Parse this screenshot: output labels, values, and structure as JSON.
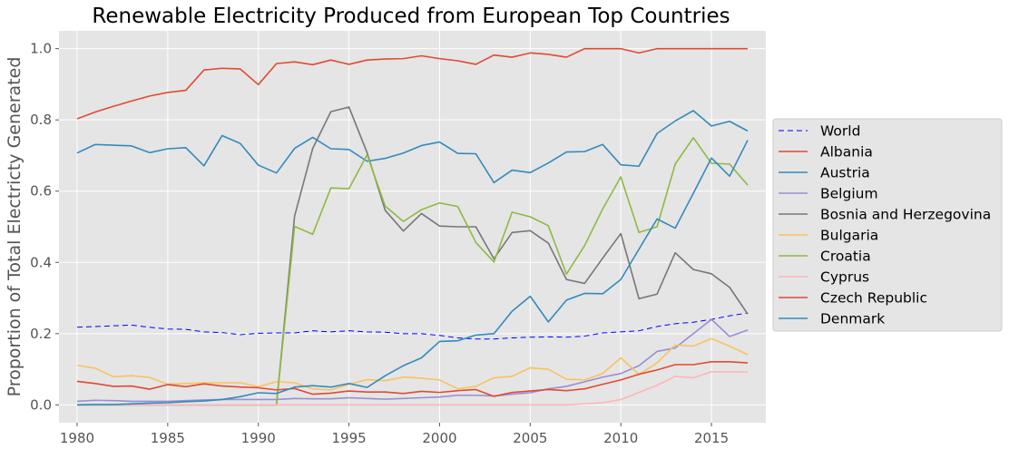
{
  "chart_data": {
    "type": "line",
    "title": "Renewable Electricity Produced from European Top Countries",
    "xlabel": "",
    "ylabel": "Proportion of Total Electricty Generated",
    "xlim": [
      1979,
      2018
    ],
    "ylim": [
      -0.05,
      1.05
    ],
    "xticks": [
      1980,
      1985,
      1990,
      1995,
      2000,
      2005,
      2010,
      2015
    ],
    "yticks": [
      0.0,
      0.2,
      0.4,
      0.6,
      0.8,
      1.0
    ],
    "ytick_labels": [
      "0.0",
      "0.2",
      "0.4",
      "0.6",
      "0.8",
      "1.0"
    ],
    "grid": true,
    "legend_position": "center-right-outside",
    "x": [
      1980,
      1981,
      1982,
      1983,
      1984,
      1985,
      1986,
      1987,
      1988,
      1989,
      1990,
      1991,
      1992,
      1993,
      1994,
      1995,
      1996,
      1997,
      1998,
      1999,
      2000,
      2001,
      2002,
      2003,
      2004,
      2005,
      2006,
      2007,
      2008,
      2009,
      2010,
      2011,
      2012,
      2013,
      2014,
      2015,
      2016,
      2017
    ],
    "series": [
      {
        "name": "World",
        "color": "#0000ff",
        "dashed": true,
        "values": [
          0.218,
          0.22,
          0.222,
          0.224,
          0.218,
          0.213,
          0.212,
          0.205,
          0.203,
          0.197,
          0.201,
          0.202,
          0.202,
          0.208,
          0.205,
          0.208,
          0.205,
          0.204,
          0.2,
          0.2,
          0.195,
          0.188,
          0.185,
          0.185,
          0.188,
          0.19,
          0.191,
          0.19,
          0.193,
          0.202,
          0.205,
          0.208,
          0.22,
          0.228,
          0.232,
          0.24,
          0.25,
          0.258
        ]
      },
      {
        "name": "Albania",
        "color": "#e24a33",
        "values": [
          0.803,
          0.822,
          0.838,
          0.853,
          0.867,
          0.877,
          0.883,
          0.94,
          0.945,
          0.943,
          0.899,
          0.958,
          0.963,
          0.955,
          0.968,
          0.956,
          0.968,
          0.971,
          0.972,
          0.98,
          0.972,
          0.966,
          0.956,
          0.982,
          0.976,
          0.988,
          0.984,
          0.976,
          1.0,
          1.0,
          1.0,
          0.988,
          1.0,
          1.0,
          1.0,
          1.0,
          1.0,
          1.0
        ]
      },
      {
        "name": "Austria",
        "color": "#348abd",
        "values": [
          0.707,
          0.731,
          0.729,
          0.727,
          0.708,
          0.719,
          0.722,
          0.671,
          0.756,
          0.734,
          0.673,
          0.651,
          0.72,
          0.751,
          0.719,
          0.717,
          0.684,
          0.692,
          0.707,
          0.728,
          0.738,
          0.706,
          0.705,
          0.624,
          0.659,
          0.652,
          0.679,
          0.71,
          0.711,
          0.731,
          0.674,
          0.67,
          0.762,
          0.797,
          0.826,
          0.783,
          0.796,
          0.769
        ]
      },
      {
        "name": "Belgium",
        "color": "#988ed5",
        "values": [
          0.01,
          0.013,
          0.012,
          0.01,
          0.01,
          0.01,
          0.012,
          0.014,
          0.015,
          0.015,
          0.015,
          0.015,
          0.018,
          0.017,
          0.017,
          0.02,
          0.018,
          0.016,
          0.018,
          0.02,
          0.022,
          0.027,
          0.027,
          0.025,
          0.03,
          0.034,
          0.045,
          0.052,
          0.065,
          0.078,
          0.088,
          0.11,
          0.15,
          0.16,
          0.2,
          0.24,
          0.192,
          0.21
        ]
      },
      {
        "name": "Bosnia and Herzegovina",
        "color": "#777777",
        "values": [
          0.0,
          0.0,
          0.0,
          0.0,
          0.0,
          0.0,
          0.0,
          0.0,
          0.0,
          0.0,
          0.0,
          0.0,
          0.53,
          0.72,
          0.823,
          0.836,
          0.708,
          0.546,
          0.488,
          0.537,
          0.502,
          0.5,
          0.5,
          0.41,
          0.484,
          0.489,
          0.454,
          0.352,
          0.341,
          0.412,
          0.481,
          0.298,
          0.311,
          0.427,
          0.38,
          0.368,
          0.33,
          0.255
        ]
      },
      {
        "name": "Bulgaria",
        "color": "#fbc15e",
        "values": [
          0.111,
          0.103,
          0.079,
          0.082,
          0.077,
          0.058,
          0.06,
          0.062,
          0.062,
          0.062,
          0.051,
          0.065,
          0.062,
          0.045,
          0.042,
          0.058,
          0.071,
          0.068,
          0.078,
          0.075,
          0.07,
          0.045,
          0.052,
          0.076,
          0.08,
          0.104,
          0.1,
          0.072,
          0.07,
          0.088,
          0.132,
          0.085,
          0.118,
          0.168,
          0.165,
          0.186,
          0.165,
          0.141
        ]
      },
      {
        "name": "Croatia",
        "color": "#8eba42",
        "values": [
          0.0,
          0.0,
          0.0,
          0.0,
          0.0,
          0.0,
          0.0,
          0.0,
          0.0,
          0.0,
          0.0,
          0.0,
          0.501,
          0.479,
          0.609,
          0.607,
          0.702,
          0.558,
          0.515,
          0.548,
          0.567,
          0.557,
          0.456,
          0.401,
          0.541,
          0.528,
          0.503,
          0.367,
          0.447,
          0.55,
          0.64,
          0.484,
          0.5,
          0.676,
          0.75,
          0.678,
          0.676,
          0.617
        ]
      },
      {
        "name": "Cyprus",
        "color": "#ffb5b8",
        "values": [
          0.0,
          0.0,
          0.0,
          0.0,
          0.0,
          0.0,
          0.0,
          0.0,
          0.0,
          0.0,
          0.0,
          0.0,
          0.0,
          0.0,
          0.0,
          0.0,
          0.0,
          0.0,
          0.0,
          0.0,
          0.0,
          0.0,
          0.0,
          0.0,
          0.0,
          0.0,
          0.0,
          0.0,
          0.003,
          0.006,
          0.015,
          0.035,
          0.055,
          0.08,
          0.076,
          0.093,
          0.093,
          0.092
        ]
      },
      {
        "name": "Czech Republic",
        "color": "#e24a33",
        "values": [
          0.066,
          0.06,
          0.052,
          0.053,
          0.044,
          0.057,
          0.051,
          0.059,
          0.053,
          0.05,
          0.048,
          0.042,
          0.046,
          0.03,
          0.033,
          0.039,
          0.036,
          0.036,
          0.032,
          0.038,
          0.035,
          0.04,
          0.043,
          0.024,
          0.035,
          0.039,
          0.043,
          0.04,
          0.045,
          0.058,
          0.07,
          0.086,
          0.098,
          0.113,
          0.113,
          0.121,
          0.121,
          0.118
        ]
      },
      {
        "name": "Denmark",
        "color": "#348abd",
        "values": [
          0.0,
          0.001,
          0.001,
          0.003,
          0.005,
          0.006,
          0.009,
          0.011,
          0.015,
          0.023,
          0.034,
          0.032,
          0.05,
          0.054,
          0.05,
          0.06,
          0.049,
          0.082,
          0.11,
          0.132,
          0.178,
          0.18,
          0.196,
          0.2,
          0.263,
          0.305,
          0.233,
          0.294,
          0.313,
          0.312,
          0.352,
          0.437,
          0.522,
          0.496,
          0.594,
          0.693,
          0.642,
          0.743
        ]
      }
    ]
  }
}
